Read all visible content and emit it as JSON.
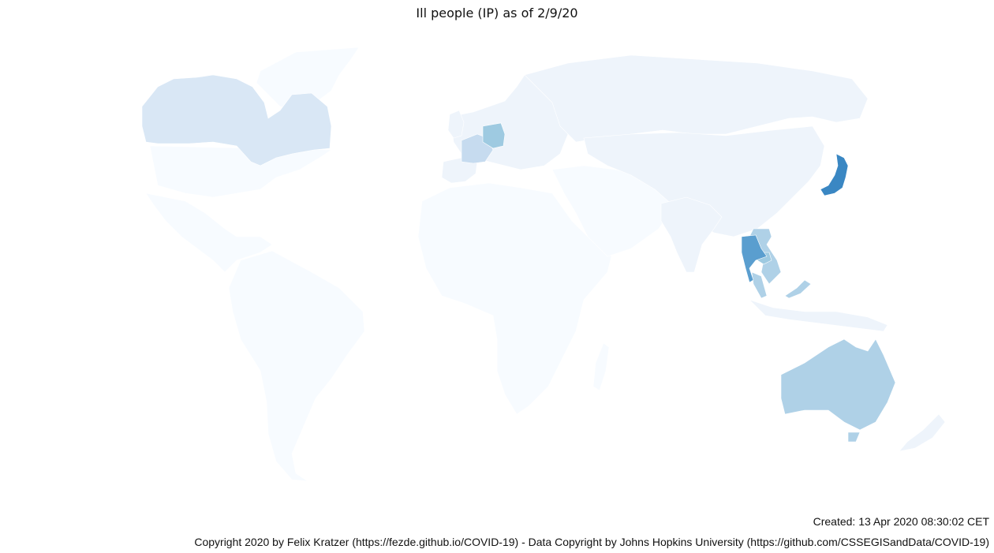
{
  "title": "Ill people (IP) as of 2/9/20",
  "footer": {
    "created": "Created: 13 Apr 2020 08:30:02 CET",
    "copyright": "Copyright 2020 by Felix Kratzer (https://fezde.github.io/COVID-19) - Data Copyright by Johns Hopkins University (https://github.com/CSSEGISandData/COVID-19)"
  },
  "colors": {
    "level0": "#f7fbff",
    "level1": "#eef4fb",
    "level2": "#d9e7f5",
    "level3": "#c6dbef",
    "level4": "#afd1e7",
    "level5": "#9ecae1",
    "level6": "#5a9ecf",
    "level7": "#3a87c3"
  },
  "regions": [
    {
      "name": "north-america-south",
      "level": "level0"
    },
    {
      "name": "south-america",
      "level": "level0"
    },
    {
      "name": "greenland",
      "level": "level0"
    },
    {
      "name": "canada",
      "level": "level2"
    },
    {
      "name": "africa",
      "level": "level0"
    },
    {
      "name": "madagascar",
      "level": "level0"
    },
    {
      "name": "middle-east",
      "level": "level0"
    },
    {
      "name": "europe",
      "level": "level1"
    },
    {
      "name": "iberia",
      "level": "level1"
    },
    {
      "name": "uk",
      "level": "level1"
    },
    {
      "name": "russia-north-asia",
      "level": "level1"
    },
    {
      "name": "china-east-asia",
      "level": "level1"
    },
    {
      "name": "india",
      "level": "level1"
    },
    {
      "name": "indonesia",
      "level": "level1"
    },
    {
      "name": "new-zealand",
      "level": "level1"
    },
    {
      "name": "france",
      "level": "level3"
    },
    {
      "name": "germany",
      "level": "level5"
    },
    {
      "name": "australia",
      "level": "level4"
    },
    {
      "name": "vietnam",
      "level": "level4"
    },
    {
      "name": "malaysia",
      "level": "level4"
    },
    {
      "name": "malaysia-borneo",
      "level": "level4"
    },
    {
      "name": "cambodia",
      "level": "level5"
    },
    {
      "name": "thailand",
      "level": "level6"
    },
    {
      "name": "japan",
      "level": "level7"
    }
  ]
}
